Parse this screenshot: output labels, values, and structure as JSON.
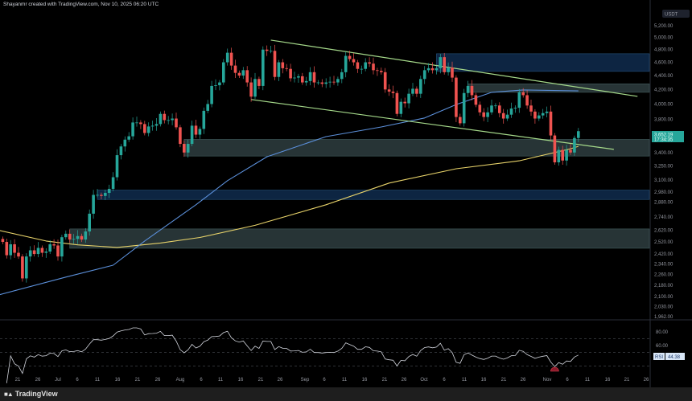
{
  "header": {
    "caption": "Shayanmr created with TradingView.com, Nov 10, 2025 06:20 UTC"
  },
  "footer": {
    "logo_text": "TradingView"
  },
  "colors": {
    "up": "#26a69a",
    "down": "#ef5350",
    "ma_blue": "#5b8fd9",
    "ma_yellow": "#e8d36a",
    "channel": "#a5d98a",
    "zone_blue": "#0f2a4a",
    "zone_grey": "#2c3a3c",
    "rsi_line": "#d1d4dc"
  },
  "chart_data": {
    "type": "candlestick",
    "symbol_currency": "USDT",
    "scale": "log",
    "ylim": [
      1962,
      5200
    ],
    "y_ticks": [
      "5,200.00",
      "5,000.00",
      "4,800.00",
      "4,600.00",
      "4,400.00",
      "4,200.00",
      "4,000.00",
      "3,800.00",
      "3,400.00",
      "3,250.00",
      "3,100.00",
      "2,980.00",
      "2,880.00",
      "2,740.00",
      "2,620.00",
      "2,520.00",
      "2,420.00",
      "2,340.00",
      "2,260.00",
      "2,180.00",
      "2,100.00",
      "2,030.00",
      "1,962.00"
    ],
    "x_ticks": [
      "21",
      "26",
      "Jul",
      "6",
      "11",
      "16",
      "21",
      "26",
      "Aug",
      "6",
      "11",
      "16",
      "21",
      "26",
      "Sep",
      "6",
      "11",
      "16",
      "21",
      "26",
      "Oct",
      "6",
      "11",
      "16",
      "21",
      "26",
      "Nov",
      "6",
      "11",
      "16",
      "21",
      "26"
    ],
    "last_price": {
      "value": "3,652.19",
      "countdown": "17:34:35"
    },
    "daily_closes": [
      [
        "2025-06-17",
        2520
      ],
      [
        "2025-06-18",
        2410
      ],
      [
        "2025-06-19",
        2500
      ],
      [
        "2025-06-20",
        2430
      ],
      [
        "2025-06-21",
        2400
      ],
      [
        "2025-06-22",
        2230
      ],
      [
        "2025-06-23",
        2400
      ],
      [
        "2025-06-24",
        2450
      ],
      [
        "2025-06-25",
        2420
      ],
      [
        "2025-06-26",
        2470
      ],
      [
        "2025-06-27",
        2430
      ],
      [
        "2025-06-28",
        2440
      ],
      [
        "2025-06-29",
        2500
      ],
      [
        "2025-06-30",
        2490
      ],
      [
        "2025-07-01",
        2400
      ],
      [
        "2025-07-02",
        2560
      ],
      [
        "2025-07-03",
        2590
      ],
      [
        "2025-07-04",
        2540
      ],
      [
        "2025-07-05",
        2545
      ],
      [
        "2025-07-06",
        2570
      ],
      [
        "2025-07-07",
        2540
      ],
      [
        "2025-07-08",
        2610
      ],
      [
        "2025-07-09",
        2770
      ],
      [
        "2025-07-10",
        2950
      ],
      [
        "2025-07-11",
        2950
      ],
      [
        "2025-07-12",
        2940
      ],
      [
        "2025-07-13",
        2970
      ],
      [
        "2025-07-14",
        3010
      ],
      [
        "2025-07-15",
        3130
      ],
      [
        "2025-07-16",
        3370
      ],
      [
        "2025-07-17",
        3470
      ],
      [
        "2025-07-18",
        3550
      ],
      [
        "2025-07-19",
        3590
      ],
      [
        "2025-07-20",
        3760
      ],
      [
        "2025-07-21",
        3760
      ],
      [
        "2025-07-22",
        3740
      ],
      [
        "2025-07-23",
        3630
      ],
      [
        "2025-07-24",
        3710
      ],
      [
        "2025-07-25",
        3720
      ],
      [
        "2025-07-26",
        3740
      ],
      [
        "2025-07-27",
        3870
      ],
      [
        "2025-07-28",
        3790
      ],
      [
        "2025-07-29",
        3790
      ],
      [
        "2025-07-30",
        3810
      ],
      [
        "2025-07-31",
        3700
      ],
      [
        "2025-08-01",
        3500
      ],
      [
        "2025-08-02",
        3400
      ],
      [
        "2025-08-03",
        3500
      ],
      [
        "2025-08-04",
        3720
      ],
      [
        "2025-08-05",
        3610
      ],
      [
        "2025-08-06",
        3680
      ],
      [
        "2025-08-07",
        3910
      ],
      [
        "2025-08-08",
        4000
      ],
      [
        "2025-08-09",
        4250
      ],
      [
        "2025-08-10",
        4260
      ],
      [
        "2025-08-11",
        4300
      ],
      [
        "2025-08-12",
        4600
      ],
      [
        "2025-08-13",
        4750
      ],
      [
        "2025-08-14",
        4550
      ],
      [
        "2025-08-15",
        4440
      ],
      [
        "2025-08-16",
        4400
      ],
      [
        "2025-08-17",
        4480
      ],
      [
        "2025-08-18",
        4300
      ],
      [
        "2025-08-19",
        4100
      ],
      [
        "2025-08-20",
        4350
      ],
      [
        "2025-08-21",
        4250
      ],
      [
        "2025-08-22",
        4800
      ],
      [
        "2025-08-23",
        4780
      ],
      [
        "2025-08-24",
        4780
      ],
      [
        "2025-08-25",
        4380
      ],
      [
        "2025-08-26",
        4600
      ],
      [
        "2025-08-27",
        4510
      ],
      [
        "2025-08-28",
        4500
      ],
      [
        "2025-08-29",
        4360
      ],
      [
        "2025-08-30",
        4370
      ],
      [
        "2025-08-31",
        4390
      ],
      [
        "2025-09-01",
        4300
      ],
      [
        "2025-09-02",
        4320
      ],
      [
        "2025-09-03",
        4450
      ],
      [
        "2025-09-04",
        4300
      ],
      [
        "2025-09-05",
        4300
      ],
      [
        "2025-09-06",
        4280
      ],
      [
        "2025-09-07",
        4300
      ],
      [
        "2025-09-08",
        4310
      ],
      [
        "2025-09-09",
        4300
      ],
      [
        "2025-09-10",
        4350
      ],
      [
        "2025-09-11",
        4450
      ],
      [
        "2025-09-12",
        4700
      ],
      [
        "2025-09-13",
        4650
      ],
      [
        "2025-09-14",
        4600
      ],
      [
        "2025-09-15",
        4500
      ],
      [
        "2025-09-16",
        4500
      ],
      [
        "2025-09-17",
        4600
      ],
      [
        "2025-09-18",
        4580
      ],
      [
        "2025-09-19",
        4480
      ],
      [
        "2025-09-20",
        4470
      ],
      [
        "2025-09-21",
        4450
      ],
      [
        "2025-09-22",
        4200
      ],
      [
        "2025-09-23",
        4170
      ],
      [
        "2025-09-24",
        4150
      ],
      [
        "2025-09-25",
        3870
      ],
      [
        "2025-09-26",
        4030
      ],
      [
        "2025-09-27",
        4010
      ],
      [
        "2025-09-28",
        4140
      ],
      [
        "2025-09-29",
        4210
      ],
      [
        "2025-09-30",
        4140
      ],
      [
        "2025-10-01",
        4350
      ],
      [
        "2025-10-02",
        4480
      ],
      [
        "2025-10-03",
        4510
      ],
      [
        "2025-10-04",
        4480
      ],
      [
        "2025-10-05",
        4510
      ],
      [
        "2025-10-06",
        4680
      ],
      [
        "2025-10-07",
        4450
      ],
      [
        "2025-10-08",
        4520
      ],
      [
        "2025-10-09",
        4370
      ],
      [
        "2025-10-10",
        3830
      ],
      [
        "2025-10-11",
        3750
      ],
      [
        "2025-10-12",
        4150
      ],
      [
        "2025-10-13",
        4250
      ],
      [
        "2025-10-14",
        4120
      ],
      [
        "2025-10-15",
        3990
      ],
      [
        "2025-10-16",
        3890
      ],
      [
        "2025-10-17",
        3830
      ],
      [
        "2025-10-18",
        3890
      ],
      [
        "2025-10-19",
        3980
      ],
      [
        "2025-10-20",
        3980
      ],
      [
        "2025-10-21",
        3880
      ],
      [
        "2025-10-22",
        3810
      ],
      [
        "2025-10-23",
        3860
      ],
      [
        "2025-10-24",
        3940
      ],
      [
        "2025-10-25",
        3950
      ],
      [
        "2025-10-26",
        4160
      ],
      [
        "2025-10-27",
        4120
      ],
      [
        "2025-10-28",
        3980
      ],
      [
        "2025-10-29",
        3900
      ],
      [
        "2025-10-30",
        3810
      ],
      [
        "2025-10-31",
        3850
      ],
      [
        "2025-11-01",
        3880
      ],
      [
        "2025-11-02",
        3900
      ],
      [
        "2025-11-03",
        3600
      ],
      [
        "2025-11-04",
        3290
      ],
      [
        "2025-11-05",
        3430
      ],
      [
        "2025-11-06",
        3310
      ],
      [
        "2025-11-07",
        3430
      ],
      [
        "2025-11-08",
        3400
      ],
      [
        "2025-11-09",
        3570
      ],
      [
        "2025-11-10",
        3652.19
      ]
    ],
    "moving_average_blue": [
      [
        "2025-06-16",
        2110
      ],
      [
        "2025-07-03",
        2240
      ],
      [
        "2025-07-15",
        2331
      ],
      [
        "2025-07-23",
        2528
      ],
      [
        "2025-08-05",
        2854
      ],
      [
        "2025-08-13",
        3094
      ],
      [
        "2025-08-23",
        3352
      ],
      [
        "2025-09-07",
        3586
      ],
      [
        "2025-09-21",
        3704
      ],
      [
        "2025-10-02",
        3817
      ],
      [
        "2025-10-10",
        3993
      ],
      [
        "2025-10-19",
        4160
      ],
      [
        "2025-10-27",
        4193
      ],
      [
        "2025-11-10",
        4180
      ]
    ],
    "moving_average_yellow": [
      [
        "2025-06-16",
        2620
      ],
      [
        "2025-06-28",
        2528
      ],
      [
        "2025-07-06",
        2495
      ],
      [
        "2025-07-16",
        2474
      ],
      [
        "2025-07-27",
        2511
      ],
      [
        "2025-08-06",
        2558
      ],
      [
        "2025-08-20",
        2664
      ],
      [
        "2025-09-07",
        2854
      ],
      [
        "2025-09-23",
        3069
      ],
      [
        "2025-10-10",
        3220
      ],
      [
        "2025-10-26",
        3307
      ],
      [
        "2025-11-08",
        3443
      ],
      [
        "2025-11-10",
        3471
      ]
    ],
    "zones": [
      {
        "kind": "blue",
        "from": "2025-10-05",
        "top": 4734,
        "bottom": 4462
      },
      {
        "kind": "grey",
        "from": "2025-10-13",
        "top": 4280,
        "bottom": 4160
      },
      {
        "kind": "grey",
        "from": "2025-08-02",
        "top": 3553,
        "bottom": 3360
      },
      {
        "kind": "blue",
        "from": "2025-07-11",
        "top": 2998,
        "bottom": 2905
      },
      {
        "kind": "grey",
        "from": "2025-07-04",
        "top": 2632,
        "bottom": 2467
      }
    ],
    "channel": [
      {
        "name": "upper",
        "start": [
          "2025-08-24",
          4955
        ],
        "end": [
          "2025-11-25",
          4104
        ]
      },
      {
        "name": "lower",
        "start": [
          "2025-08-19",
          4061
        ],
        "end": [
          "2025-11-19",
          3436
        ]
      }
    ],
    "rsi": {
      "label": "RSI",
      "value": "44.38",
      "ticks": [
        "80.00",
        "60.00"
      ],
      "levels": [
        70,
        50,
        30
      ],
      "period": 14,
      "oversold_marker_date": "2025-11-04"
    }
  }
}
